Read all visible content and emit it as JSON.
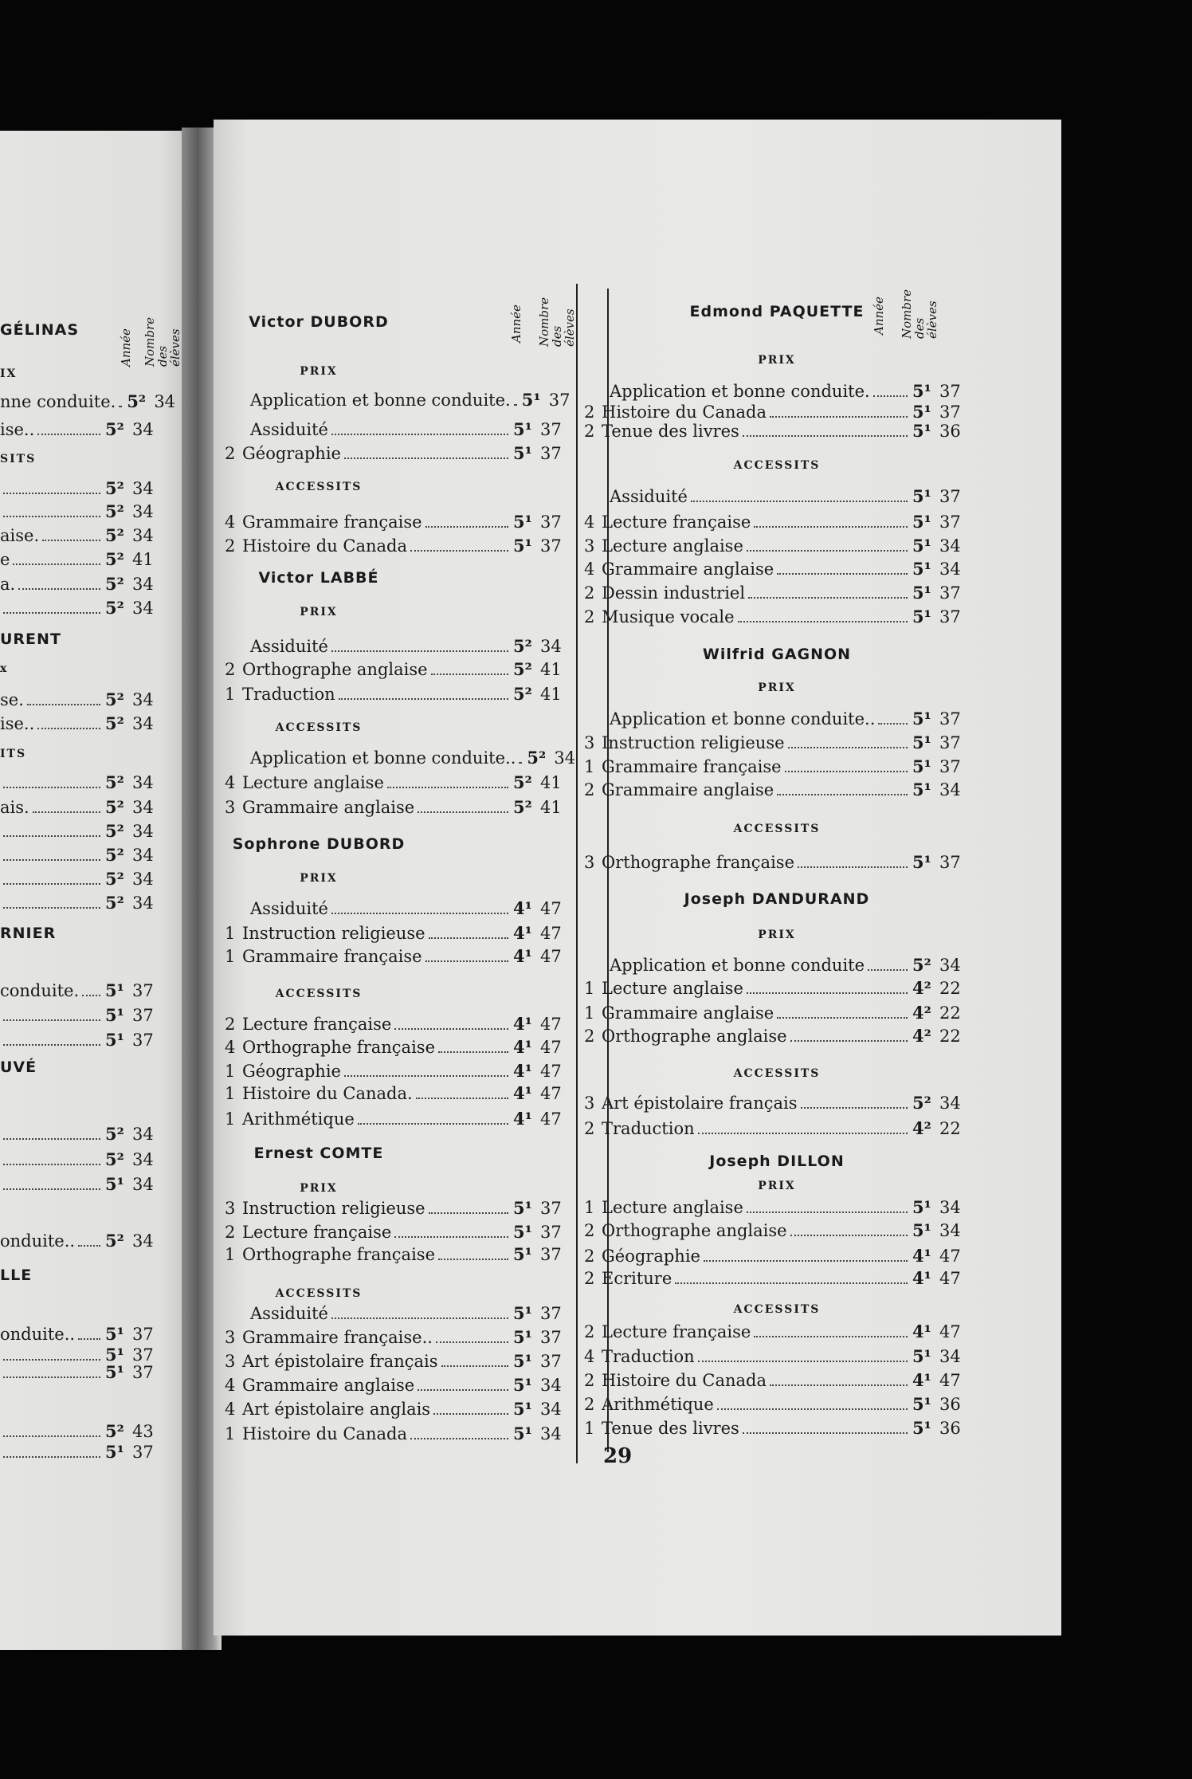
{
  "column_headers": {
    "annee": "Année",
    "nombre": "Nombre des élèves"
  },
  "page_number": "29",
  "left_fragment": [
    {
      "type": "name",
      "text": "GÉLINAS"
    },
    {
      "type": "section",
      "text": "IX"
    },
    {
      "type": "row",
      "label": "nne conduite.",
      "annee": "5²",
      "nombre": "34"
    },
    {
      "type": "row",
      "label": "ise..",
      "annee": "5²",
      "nombre": "34"
    },
    {
      "type": "section",
      "text": "SITS"
    },
    {
      "type": "row",
      "label": "",
      "annee": "5²",
      "nombre": "34"
    },
    {
      "type": "row",
      "label": "",
      "annee": "5²",
      "nombre": "34"
    },
    {
      "type": "row",
      "label": "aise.",
      "annee": "5²",
      "nombre": "34"
    },
    {
      "type": "row",
      "label": "e",
      "annee": "5²",
      "nombre": "41"
    },
    {
      "type": "row",
      "label": "a.",
      "annee": "5²",
      "nombre": "34"
    },
    {
      "type": "row",
      "label": "",
      "annee": "5²",
      "nombre": "34"
    },
    {
      "type": "name",
      "text": "URENT"
    },
    {
      "type": "section",
      "text": "x"
    },
    {
      "type": "row",
      "label": "se.",
      "annee": "5²",
      "nombre": "34"
    },
    {
      "type": "row",
      "label": "ise..",
      "annee": "5²",
      "nombre": "34"
    },
    {
      "type": "section",
      "text": "ITS"
    },
    {
      "type": "row",
      "label": "",
      "annee": "5²",
      "nombre": "34"
    },
    {
      "type": "row",
      "label": "ais.",
      "annee": "5²",
      "nombre": "34"
    },
    {
      "type": "row",
      "label": "",
      "annee": "5²",
      "nombre": "34"
    },
    {
      "type": "row",
      "label": "",
      "annee": "5²",
      "nombre": "34"
    },
    {
      "type": "row",
      "label": "",
      "annee": "5²",
      "nombre": "34"
    },
    {
      "type": "row",
      "label": "",
      "annee": "5²",
      "nombre": "34"
    },
    {
      "type": "name",
      "text": "RNIER"
    },
    {
      "type": "row",
      "label": "conduite.",
      "annee": "5¹",
      "nombre": "37"
    },
    {
      "type": "row",
      "label": "",
      "annee": "5¹",
      "nombre": "37"
    },
    {
      "type": "row",
      "label": "",
      "annee": "5¹",
      "nombre": "37"
    },
    {
      "type": "name",
      "text": "UVÉ"
    },
    {
      "type": "row",
      "label": "",
      "annee": "5²",
      "nombre": "34"
    },
    {
      "type": "row",
      "label": "",
      "annee": "5²",
      "nombre": "34"
    },
    {
      "type": "row",
      "label": "",
      "annee": "5¹",
      "nombre": "34"
    },
    {
      "type": "row",
      "label": "onduite..",
      "annee": "5²",
      "nombre": "34"
    },
    {
      "type": "name",
      "text": "LLE"
    },
    {
      "type": "row",
      "label": "onduite..",
      "annee": "5¹",
      "nombre": "37"
    },
    {
      "type": "row",
      "label": "",
      "annee": "5¹",
      "nombre": "37"
    },
    {
      "type": "row",
      "label": "",
      "annee": "5¹",
      "nombre": "37"
    },
    {
      "type": "row",
      "label": "",
      "annee": "5²",
      "nombre": "43"
    },
    {
      "type": "row",
      "label": "",
      "annee": "5¹",
      "nombre": "37"
    }
  ],
  "middle_column": [
    {
      "type": "name",
      "text": "Victor DUBORD"
    },
    {
      "type": "section",
      "text": "PRIX"
    },
    {
      "type": "row",
      "rank": "",
      "label": "Application et bonne conduite.",
      "annee": "5¹",
      "nombre": "37"
    },
    {
      "type": "row",
      "rank": "",
      "label": "Assiduité",
      "annee": "5¹",
      "nombre": "37"
    },
    {
      "type": "row",
      "rank": "2",
      "label": "Géographie",
      "annee": "5¹",
      "nombre": "37"
    },
    {
      "type": "section",
      "text": "ACCESSITS"
    },
    {
      "type": "row",
      "rank": "4",
      "label": "Grammaire française",
      "annee": "5¹",
      "nombre": "37"
    },
    {
      "type": "row",
      "rank": "2",
      "label": "Histoire du Canada",
      "annee": "5¹",
      "nombre": "37"
    },
    {
      "type": "name",
      "text": "Victor LABBÉ"
    },
    {
      "type": "section",
      "text": "PRIX"
    },
    {
      "type": "row",
      "rank": "",
      "label": "Assiduité",
      "annee": "5²",
      "nombre": "34"
    },
    {
      "type": "row",
      "rank": "2",
      "label": "Orthographe anglaise",
      "annee": "5²",
      "nombre": "41"
    },
    {
      "type": "row",
      "rank": "1",
      "label": "Traduction",
      "annee": "5²",
      "nombre": "41"
    },
    {
      "type": "section",
      "text": "ACCESSITS"
    },
    {
      "type": "row",
      "rank": "",
      "label": "Application et bonne conduite..",
      "annee": "5²",
      "nombre": "34"
    },
    {
      "type": "row",
      "rank": "4",
      "label": "Lecture anglaise",
      "annee": "5²",
      "nombre": "41"
    },
    {
      "type": "row",
      "rank": "3",
      "label": "Grammaire anglaise",
      "annee": "5²",
      "nombre": "41"
    },
    {
      "type": "name",
      "text": "Sophrone DUBORD"
    },
    {
      "type": "section",
      "text": "PRIX"
    },
    {
      "type": "row",
      "rank": "",
      "label": "Assiduité",
      "annee": "4¹",
      "nombre": "47"
    },
    {
      "type": "row",
      "rank": "1",
      "label": "Instruction religieuse",
      "annee": "4¹",
      "nombre": "47"
    },
    {
      "type": "row",
      "rank": "1",
      "label": "Grammaire française",
      "annee": "4¹",
      "nombre": "47"
    },
    {
      "type": "section",
      "text": "ACCESSITS"
    },
    {
      "type": "row",
      "rank": "2",
      "label": "Lecture française",
      "annee": "4¹",
      "nombre": "47"
    },
    {
      "type": "row",
      "rank": "4",
      "label": "Orthographe française",
      "annee": "4¹",
      "nombre": "47"
    },
    {
      "type": "row",
      "rank": "1",
      "label": "Géographie",
      "annee": "4¹",
      "nombre": "47"
    },
    {
      "type": "row",
      "rank": "1",
      "label": "Histoire du Canada.",
      "annee": "4¹",
      "nombre": "47"
    },
    {
      "type": "row",
      "rank": "1",
      "label": "Arithmétique",
      "annee": "4¹",
      "nombre": "47"
    },
    {
      "type": "name",
      "text": "Ernest COMTE"
    },
    {
      "type": "section",
      "text": "PRIX"
    },
    {
      "type": "row",
      "rank": "3",
      "label": "Instruction religieuse",
      "annee": "5¹",
      "nombre": "37"
    },
    {
      "type": "row",
      "rank": "2",
      "label": "Lecture française",
      "annee": "5¹",
      "nombre": "37"
    },
    {
      "type": "row",
      "rank": "1",
      "label": "Orthographe française",
      "annee": "5¹",
      "nombre": "37"
    },
    {
      "type": "section",
      "text": "ACCESSITS"
    },
    {
      "type": "row",
      "rank": "",
      "label": "Assiduité",
      "annee": "5¹",
      "nombre": "37"
    },
    {
      "type": "row",
      "rank": "3",
      "label": "Grammaire française..",
      "annee": "5¹",
      "nombre": "37"
    },
    {
      "type": "row",
      "rank": "3",
      "label": "Art épistolaire français",
      "annee": "5¹",
      "nombre": "37"
    },
    {
      "type": "row",
      "rank": "4",
      "label": "Grammaire anglaise",
      "annee": "5¹",
      "nombre": "34"
    },
    {
      "type": "row",
      "rank": "4",
      "label": "Art épistolaire anglais",
      "annee": "5¹",
      "nombre": "34"
    },
    {
      "type": "row",
      "rank": "1",
      "label": "Histoire du Canada",
      "annee": "5¹",
      "nombre": "34"
    }
  ],
  "right_column": [
    {
      "type": "name",
      "text": "Edmond PAQUETTE"
    },
    {
      "type": "section",
      "text": "PRIX"
    },
    {
      "type": "row",
      "rank": "",
      "label": "Application et bonne conduite.",
      "annee": "5¹",
      "nombre": "37"
    },
    {
      "type": "row",
      "rank": "2",
      "label": "Histoire du Canada",
      "annee": "5¹",
      "nombre": "37"
    },
    {
      "type": "row",
      "rank": "2",
      "label": "Tenue des livres",
      "annee": "5¹",
      "nombre": "36"
    },
    {
      "type": "section",
      "text": "ACCESSITS"
    },
    {
      "type": "row",
      "rank": "",
      "label": "Assiduité",
      "annee": "5¹",
      "nombre": "37"
    },
    {
      "type": "row",
      "rank": "4",
      "label": "Lecture française",
      "annee": "5¹",
      "nombre": "37"
    },
    {
      "type": "row",
      "rank": "3",
      "label": "Lecture anglaise",
      "annee": "5¹",
      "nombre": "34"
    },
    {
      "type": "row",
      "rank": "4",
      "label": "Grammaire anglaise",
      "annee": "5¹",
      "nombre": "34"
    },
    {
      "type": "row",
      "rank": "2",
      "label": "Dessin industriel",
      "annee": "5¹",
      "nombre": "37"
    },
    {
      "type": "row",
      "rank": "2",
      "label": "Musique vocale",
      "annee": "5¹",
      "nombre": "37"
    },
    {
      "type": "name",
      "text": "Wilfrid GAGNON"
    },
    {
      "type": "section",
      "text": "PRIX"
    },
    {
      "type": "row",
      "rank": "",
      "label": "Application et bonne conduite..",
      "annee": "5¹",
      "nombre": "37"
    },
    {
      "type": "row",
      "rank": "3",
      "label": "Instruction religieuse",
      "annee": "5¹",
      "nombre": "37"
    },
    {
      "type": "row",
      "rank": "1",
      "label": "Grammaire française",
      "annee": "5¹",
      "nombre": "37"
    },
    {
      "type": "row",
      "rank": "2",
      "label": "Grammaire anglaise",
      "annee": "5¹",
      "nombre": "34"
    },
    {
      "type": "section",
      "text": "ACCESSITS"
    },
    {
      "type": "row",
      "rank": "3",
      "label": "Orthographe française",
      "annee": "5¹",
      "nombre": "37"
    },
    {
      "type": "name",
      "text": "Joseph DANDURAND"
    },
    {
      "type": "section",
      "text": "PRIX"
    },
    {
      "type": "row",
      "rank": "",
      "label": "Application et bonne conduite",
      "annee": "5²",
      "nombre": "34"
    },
    {
      "type": "row",
      "rank": "1",
      "label": "Lecture anglaise",
      "annee": "4²",
      "nombre": "22"
    },
    {
      "type": "row",
      "rank": "1",
      "label": "Grammaire anglaise",
      "annee": "4²",
      "nombre": "22"
    },
    {
      "type": "row",
      "rank": "2",
      "label": "Orthographe anglaise",
      "annee": "4²",
      "nombre": "22"
    },
    {
      "type": "section",
      "text": "ACCESSITS"
    },
    {
      "type": "row",
      "rank": "3",
      "label": "Art épistolaire français",
      "annee": "5²",
      "nombre": "34"
    },
    {
      "type": "row",
      "rank": "2",
      "label": "Traduction",
      "annee": "4²",
      "nombre": "22"
    },
    {
      "type": "name",
      "text": "Joseph DILLON"
    },
    {
      "type": "section",
      "text": "PRIX"
    },
    {
      "type": "row",
      "rank": "1",
      "label": "Lecture anglaise",
      "annee": "5¹",
      "nombre": "34"
    },
    {
      "type": "row",
      "rank": "2",
      "label": "Orthographe anglaise",
      "annee": "5¹",
      "nombre": "34"
    },
    {
      "type": "row",
      "rank": "2",
      "label": "Géographie",
      "annee": "4¹",
      "nombre": "47"
    },
    {
      "type": "row",
      "rank": "2",
      "label": "Ecriture",
      "annee": "4¹",
      "nombre": "47"
    },
    {
      "type": "section",
      "text": "ACCESSITS"
    },
    {
      "type": "row",
      "rank": "2",
      "label": "Lecture française",
      "annee": "4¹",
      "nombre": "47"
    },
    {
      "type": "row",
      "rank": "4",
      "label": "Traduction",
      "annee": "5¹",
      "nombre": "34"
    },
    {
      "type": "row",
      "rank": "2",
      "label": "Histoire du Canada",
      "annee": "4¹",
      "nombre": "47"
    },
    {
      "type": "row",
      "rank": "2",
      "label": "Arithmétique",
      "annee": "5¹",
      "nombre": "36"
    },
    {
      "type": "row",
      "rank": "1",
      "label": "Tenue des livres",
      "annee": "5¹",
      "nombre": "36"
    }
  ]
}
